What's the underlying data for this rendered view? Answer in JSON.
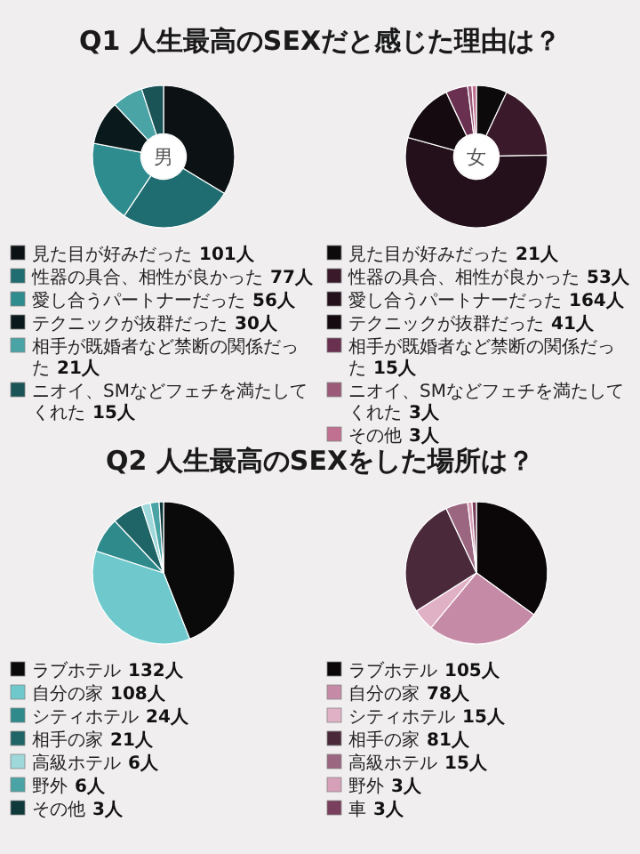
{
  "chart_data": [
    {
      "type": "donut",
      "legend": "bottom",
      "title": "Q1 人生最高のSEXだと感じた理由は？",
      "annotations": [
        "男"
      ],
      "categories": [
        "見た目が好みだった",
        "性器の具合、相性が良かった",
        "愛し合うパートナーだった",
        "テクニックが抜群だった",
        "相手が既婚者など禁断の関係だった",
        "ニオイ、SMなどフェチを満たしてくれた"
      ],
      "values": [
        101,
        77,
        56,
        30,
        21,
        15
      ],
      "value_labels": [
        "101人",
        "77人",
        "56人",
        "30人",
        "21人",
        "15人"
      ],
      "colors": [
        "#0c1214",
        "#1f6d70",
        "#2f8c8e",
        "#0a1a1c",
        "#4aa3a5",
        "#1a5456"
      ]
    },
    {
      "type": "donut",
      "legend": "bottom",
      "annotations": [
        "女"
      ],
      "categories": [
        "見た目が好みだった",
        "性器の具合、相性が良かった",
        "愛し合うパートナーだった",
        "テクニックが抜群だった",
        "相手が既婚者など禁断の関係だった",
        "ニオイ、SMなどフェチを満たしてくれた",
        "その他"
      ],
      "values": [
        21,
        53,
        164,
        41,
        15,
        3,
        3
      ],
      "value_labels": [
        "21人",
        "53人",
        "164人",
        "41人",
        "15人",
        "3人",
        "3人"
      ],
      "colors": [
        "#0d0a0c",
        "#3a1a2a",
        "#24101a",
        "#140a10",
        "#6a3050",
        "#9a5a78",
        "#c07090"
      ]
    },
    {
      "type": "pie",
      "legend": "bottom",
      "title": "Q2 人生最高のSEXをした場所は？",
      "categories": [
        "ラブホテル",
        "自分の家",
        "シティホテル",
        "相手の家",
        "高級ホテル",
        "野外",
        "その他"
      ],
      "values": [
        132,
        108,
        24,
        21,
        6,
        6,
        3
      ],
      "value_labels": [
        "132人",
        "108人",
        "24人",
        "21人",
        "6人",
        "6人",
        "3人"
      ],
      "colors": [
        "#0a0a0a",
        "#6fc9cc",
        "#2f8a8c",
        "#1f6466",
        "#9fd8da",
        "#4aa3a5",
        "#0f3a3c"
      ]
    },
    {
      "type": "pie",
      "legend": "bottom",
      "categories": [
        "ラブホテル",
        "自分の家",
        "シティホテル",
        "相手の家",
        "高級ホテル",
        "野外",
        "車"
      ],
      "values": [
        105,
        78,
        15,
        81,
        15,
        3,
        3
      ],
      "value_labels": [
        "105人",
        "78人",
        "15人",
        "81人",
        "15人",
        "3人",
        "3人"
      ],
      "colors": [
        "#0b0709",
        "#c58aa6",
        "#e0b0c4",
        "#4a2a3a",
        "#9a6680",
        "#d6a0b8",
        "#7a3f5c"
      ]
    }
  ]
}
